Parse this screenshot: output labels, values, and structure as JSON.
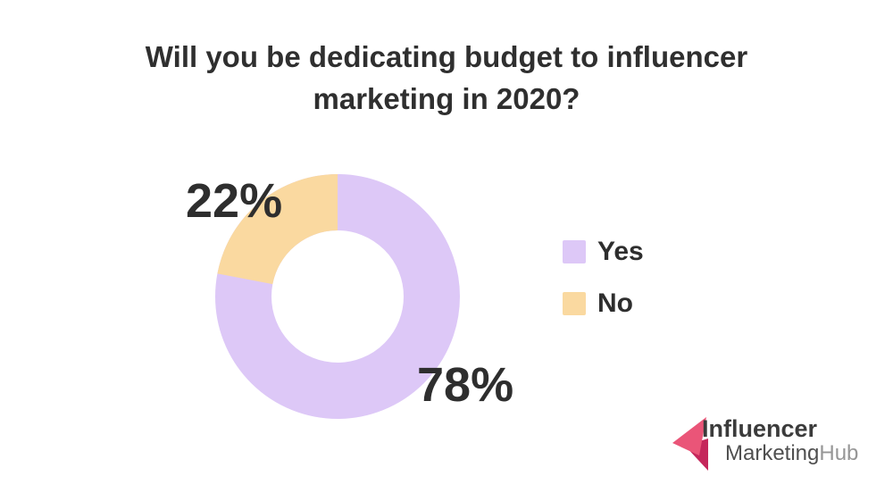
{
  "header": {
    "title_lines": [
      "Will you be dedicating budget to influencer",
      "marketing in 2020?"
    ]
  },
  "chart_data": {
    "type": "pie",
    "variant": "donut",
    "title": "Will you be dedicating budget to influencer marketing in 2020?",
    "categories": [
      "Yes",
      "No"
    ],
    "values": [
      78,
      22
    ],
    "unit": "%",
    "data_labels": [
      "78%",
      "22%"
    ],
    "colors": [
      "#ddc8f7",
      "#fad9a0"
    ],
    "donut_hole_color": "#ffffff",
    "start_angle_deg": 0,
    "direction": "clockwise",
    "legend_position": "right"
  },
  "logo": {
    "line1": "Influencer",
    "line2_dark": "Marketing",
    "line2_light": "Hub",
    "colors": {
      "arrow_light": "#ea5578",
      "arrow_dark": "#c5275b"
    }
  },
  "theme": {
    "background": "#ffffff",
    "text": "#2f2f2f"
  }
}
